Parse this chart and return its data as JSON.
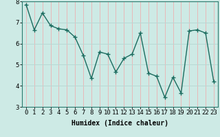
{
  "x": [
    0,
    1,
    2,
    3,
    4,
    5,
    6,
    7,
    8,
    9,
    10,
    11,
    12,
    13,
    14,
    15,
    16,
    17,
    18,
    19,
    20,
    21,
    22,
    23
  ],
  "y": [
    7.85,
    6.65,
    7.45,
    6.85,
    6.7,
    6.65,
    6.3,
    5.45,
    4.35,
    5.6,
    5.5,
    4.65,
    5.3,
    5.5,
    6.5,
    4.6,
    4.45,
    3.45,
    4.4,
    3.65,
    6.6,
    6.65,
    6.5,
    4.2
  ],
  "line_color": "#1a6b5e",
  "bg_color": "#cdeae5",
  "grid_color_x": "#e8b8b8",
  "grid_color_y": "#b8d8d4",
  "xlabel": "Humidex (Indice chaleur)",
  "ylim": [
    3,
    8
  ],
  "xlim": [
    -0.5,
    23.5
  ],
  "yticks": [
    3,
    4,
    5,
    6,
    7,
    8
  ],
  "xticks": [
    0,
    1,
    2,
    3,
    4,
    5,
    6,
    7,
    8,
    9,
    10,
    11,
    12,
    13,
    14,
    15,
    16,
    17,
    18,
    19,
    20,
    21,
    22,
    23
  ],
  "marker": "+",
  "markersize": 4,
  "linewidth": 1.0,
  "xlabel_fontsize": 7,
  "tick_fontsize": 6.5,
  "axis_bg": "#cdeae5",
  "fig_bg": "#cdeae5"
}
